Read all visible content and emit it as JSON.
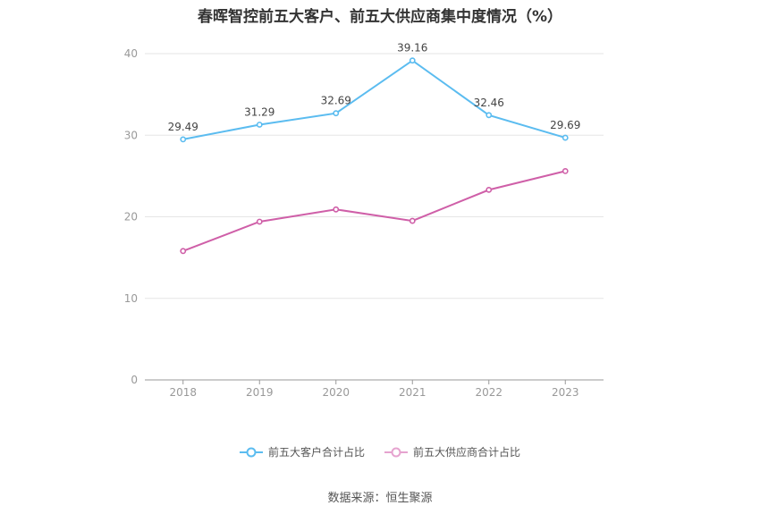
{
  "chart_data": {
    "type": "line",
    "title": "春晖智控前五大客户、前五大供应商集中度情况（%）",
    "categories": [
      "2018",
      "2019",
      "2020",
      "2021",
      "2022",
      "2023"
    ],
    "series": [
      {
        "name": "前五大客户合计占比",
        "values": [
          29.49,
          31.29,
          32.69,
          39.16,
          32.46,
          29.69
        ],
        "color": "#5bbcf0",
        "labels_shown": true
      },
      {
        "name": "前五大供应商合计占比",
        "values": [
          15.8,
          19.4,
          20.9,
          19.5,
          23.3,
          25.6
        ],
        "color": "#cf5fa8",
        "labels_shown": false
      }
    ],
    "ylim": [
      0,
      40
    ],
    "yticks": [
      0,
      10,
      20,
      30,
      40
    ],
    "grid": true,
    "legend_position": "bottom"
  },
  "source_text": "数据来源：恒生聚源"
}
